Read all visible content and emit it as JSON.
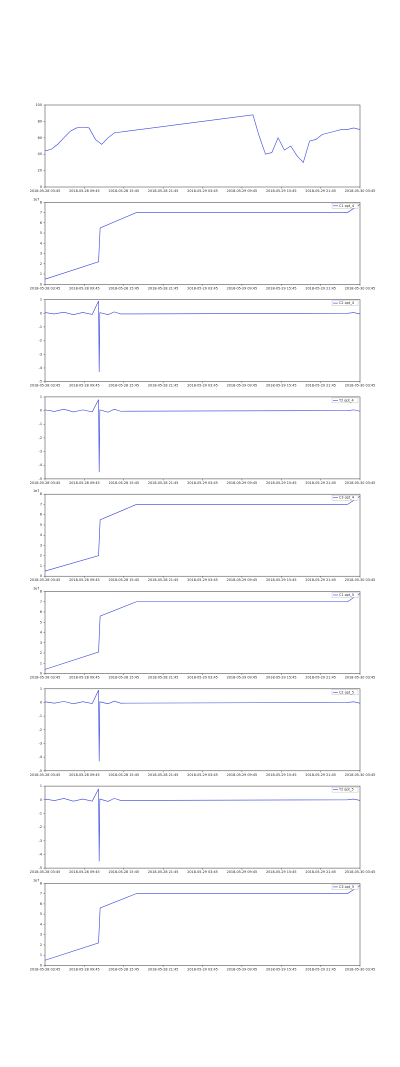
{
  "chart_data": [
    {
      "type": "line",
      "color": "#3344dd",
      "x": [
        0,
        2,
        4,
        6,
        8,
        10,
        12,
        14,
        16,
        18,
        20,
        22,
        66,
        68,
        70,
        72,
        74,
        76,
        78,
        80,
        82,
        84,
        86,
        88,
        90,
        92,
        94,
        96,
        98,
        100
      ],
      "values": [
        44,
        46,
        52,
        60,
        68,
        72,
        73,
        72,
        58,
        52,
        60,
        66,
        88,
        62,
        40,
        42,
        60,
        45,
        50,
        38,
        30,
        56,
        58,
        64,
        66,
        68,
        70,
        70,
        72,
        70
      ],
      "xlim": [
        0,
        100
      ],
      "ylim": [
        0,
        100
      ],
      "yticks": [
        0,
        20,
        40,
        60,
        80,
        100
      ],
      "xticks": [
        {
          "value": 0,
          "label": "2018-05-28 03:45"
        },
        {
          "value": 12.5,
          "label": "2018-05-28 09:45"
        },
        {
          "value": 25,
          "label": "2018-05-28 15:45"
        },
        {
          "value": 37.5,
          "label": "2018-05-28 21:45"
        },
        {
          "value": 50,
          "label": "2018-05-29 03:45"
        },
        {
          "value": 62.5,
          "label": "2018-05-29 09:45"
        },
        {
          "value": 75,
          "label": "2018-05-29 15:45"
        },
        {
          "value": 87.5,
          "label": "2018-05-29 21:45"
        },
        {
          "value": 100,
          "label": "2018-05-30 03:45"
        }
      ]
    },
    {
      "type": "line",
      "offset_text": "1e7",
      "series": [
        {
          "name": "C1 opt_4",
          "color": "#3344dd",
          "x": [
            0,
            17,
            17.5,
            29,
            96,
            100
          ],
          "values": [
            0.5,
            2.2,
            5.5,
            7,
            7,
            7.8
          ]
        }
      ],
      "xlim": [
        0,
        100
      ],
      "ylim": [
        0,
        8
      ],
      "yticks": [
        0,
        1,
        2,
        3,
        4,
        5,
        6,
        7,
        8
      ],
      "xticks": [
        {
          "value": 0,
          "label": "2018-05-28 03:45"
        },
        {
          "value": 12.5,
          "label": "2018-05-28 09:45"
        },
        {
          "value": 25,
          "label": "2018-05-28 15:45"
        },
        {
          "value": 37.5,
          "label": "2018-05-28 21:45"
        },
        {
          "value": 50,
          "label": "2018-05-29 03:45"
        },
        {
          "value": 62.5,
          "label": "2018-05-29 09:45"
        },
        {
          "value": 75,
          "label": "2018-05-29 15:45"
        },
        {
          "value": 87.5,
          "label": "2018-05-29 21:45"
        },
        {
          "value": 100,
          "label": "2018-05-30 03:45"
        }
      ]
    },
    {
      "type": "line",
      "series": [
        {
          "name": "C2 opt_4",
          "color": "#3344dd",
          "x": [
            0,
            3,
            6,
            9,
            12,
            15,
            17,
            17.2,
            17.4,
            20,
            22,
            24,
            96,
            98,
            100
          ],
          "values": [
            0.05,
            -0.05,
            0.08,
            -0.1,
            0.06,
            -0.08,
            0.9,
            -4.3,
            0.05,
            -0.1,
            0.1,
            -0.05,
            0,
            0.05,
            -0.05
          ]
        }
      ],
      "xlim": [
        0,
        100
      ],
      "ylim": [
        -5,
        1
      ],
      "yticks": [
        -5,
        -4,
        -3,
        -2,
        -1,
        0,
        1
      ],
      "xticks": [
        {
          "value": 0,
          "label": "2018-05-28 03:45"
        },
        {
          "value": 12.5,
          "label": "2018-05-28 09:45"
        },
        {
          "value": 25,
          "label": "2018-05-28 15:45"
        },
        {
          "value": 37.5,
          "label": "2018-05-28 21:45"
        },
        {
          "value": 50,
          "label": "2018-05-29 03:45"
        },
        {
          "value": 62.5,
          "label": "2018-05-29 09:45"
        },
        {
          "value": 75,
          "label": "2018-05-29 15:45"
        },
        {
          "value": 87.5,
          "label": "2018-05-29 21:45"
        },
        {
          "value": 100,
          "label": "2018-05-30 03:45"
        }
      ]
    },
    {
      "type": "line",
      "series": [
        {
          "name": "T2 opt_4",
          "color": "#3344dd",
          "x": [
            0,
            3,
            6,
            9,
            12,
            15,
            17,
            17.2,
            17.4,
            20,
            22,
            24,
            96,
            98,
            100
          ],
          "values": [
            0.05,
            -0.06,
            0.1,
            -0.1,
            0.05,
            -0.1,
            0.8,
            -4.5,
            0.05,
            -0.12,
            0.1,
            -0.05,
            0,
            0.05,
            -0.05
          ]
        }
      ],
      "xlim": [
        0,
        100
      ],
      "ylim": [
        -5,
        1
      ],
      "yticks": [
        -5,
        -4,
        -3,
        -2,
        -1,
        0,
        1
      ],
      "xticks": [
        {
          "value": 0,
          "label": "2018-05-28 03:45"
        },
        {
          "value": 12.5,
          "label": "2018-05-28 09:45"
        },
        {
          "value": 25,
          "label": "2018-05-28 15:45"
        },
        {
          "value": 37.5,
          "label": "2018-05-28 21:45"
        },
        {
          "value": 50,
          "label": "2018-05-29 03:45"
        },
        {
          "value": 62.5,
          "label": "2018-05-29 09:45"
        },
        {
          "value": 75,
          "label": "2018-05-29 15:45"
        },
        {
          "value": 87.5,
          "label": "2018-05-29 21:45"
        },
        {
          "value": 100,
          "label": "2018-05-30 03:45"
        }
      ]
    },
    {
      "type": "line",
      "offset_text": "1e7",
      "series": [
        {
          "name": "C3 opt_4",
          "color": "#3344dd",
          "x": [
            0,
            17,
            17.5,
            29,
            96,
            100
          ],
          "values": [
            0.5,
            2,
            5.5,
            7,
            7,
            7.8
          ]
        }
      ],
      "xlim": [
        0,
        100
      ],
      "ylim": [
        0,
        8
      ],
      "yticks": [
        0,
        1,
        2,
        3,
        4,
        5,
        6,
        7,
        8
      ],
      "xticks": [
        {
          "value": 0,
          "label": "2018-05-28 03:45"
        },
        {
          "value": 12.5,
          "label": "2018-05-28 09:45"
        },
        {
          "value": 25,
          "label": "2018-05-28 15:45"
        },
        {
          "value": 37.5,
          "label": "2018-05-28 21:45"
        },
        {
          "value": 50,
          "label": "2018-05-29 03:45"
        },
        {
          "value": 62.5,
          "label": "2018-05-29 09:45"
        },
        {
          "value": 75,
          "label": "2018-05-29 15:45"
        },
        {
          "value": 87.5,
          "label": "2018-05-29 21:45"
        },
        {
          "value": 100,
          "label": "2018-05-30 03:45"
        }
      ]
    },
    {
      "type": "line",
      "offset_text": "1e7",
      "series": [
        {
          "name": "C1 opt_5",
          "color": "#3344dd",
          "x": [
            0,
            17,
            17.5,
            29,
            96,
            100
          ],
          "values": [
            0.4,
            2.1,
            5.6,
            7,
            7,
            7.8
          ]
        }
      ],
      "xlim": [
        0,
        100
      ],
      "ylim": [
        0,
        8
      ],
      "yticks": [
        0,
        1,
        2,
        3,
        4,
        5,
        6,
        7,
        8
      ],
      "xticks": [
        {
          "value": 0,
          "label": "2018-05-28 03:45"
        },
        {
          "value": 12.5,
          "label": "2018-05-28 09:45"
        },
        {
          "value": 25,
          "label": "2018-05-28 15:45"
        },
        {
          "value": 37.5,
          "label": "2018-05-28 21:45"
        },
        {
          "value": 50,
          "label": "2018-05-29 03:45"
        },
        {
          "value": 62.5,
          "label": "2018-05-29 09:45"
        },
        {
          "value": 75,
          "label": "2018-05-29 15:45"
        },
        {
          "value": 87.5,
          "label": "2018-05-29 21:45"
        },
        {
          "value": 100,
          "label": "2018-05-30 03:45"
        }
      ]
    },
    {
      "type": "line",
      "series": [
        {
          "name": "C2 opt_5",
          "color": "#3344dd",
          "x": [
            0,
            3,
            6,
            9,
            12,
            15,
            17,
            17.2,
            17.4,
            20,
            22,
            24,
            96,
            98,
            100
          ],
          "values": [
            0.05,
            -0.05,
            0.08,
            -0.1,
            0.06,
            -0.08,
            0.9,
            -4.3,
            0.05,
            -0.1,
            0.1,
            -0.05,
            0,
            0.05,
            -0.05
          ]
        }
      ],
      "xlim": [
        0,
        100
      ],
      "ylim": [
        -5,
        1
      ],
      "yticks": [
        -5,
        -4,
        -3,
        -2,
        -1,
        0,
        1
      ],
      "xticks": [
        {
          "value": 0,
          "label": "2018-05-28 03:45"
        },
        {
          "value": 12.5,
          "label": "2018-05-28 09:45"
        },
        {
          "value": 25,
          "label": "2018-05-28 15:45"
        },
        {
          "value": 37.5,
          "label": "2018-05-28 21:45"
        },
        {
          "value": 50,
          "label": "2018-05-29 03:45"
        },
        {
          "value": 62.5,
          "label": "2018-05-29 09:45"
        },
        {
          "value": 75,
          "label": "2018-05-29 15:45"
        },
        {
          "value": 87.5,
          "label": "2018-05-29 21:45"
        },
        {
          "value": 100,
          "label": "2018-05-30 03:45"
        }
      ]
    },
    {
      "type": "line",
      "series": [
        {
          "name": "T2 opt_5",
          "color": "#3344dd",
          "x": [
            0,
            3,
            6,
            9,
            12,
            15,
            17,
            17.2,
            17.4,
            20,
            22,
            24,
            96,
            98,
            100
          ],
          "values": [
            0.05,
            -0.06,
            0.1,
            -0.1,
            0.05,
            -0.1,
            0.8,
            -4.5,
            0.05,
            -0.12,
            0.1,
            -0.05,
            0,
            0.05,
            -0.05
          ]
        }
      ],
      "xlim": [
        0,
        100
      ],
      "ylim": [
        -5,
        1
      ],
      "yticks": [
        -5,
        -4,
        -3,
        -2,
        -1,
        0,
        1
      ],
      "xticks": [
        {
          "value": 0,
          "label": "2018-05-28 03:45"
        },
        {
          "value": 12.5,
          "label": "2018-05-28 09:45"
        },
        {
          "value": 25,
          "label": "2018-05-28 15:45"
        },
        {
          "value": 37.5,
          "label": "2018-05-28 21:45"
        },
        {
          "value": 50,
          "label": "2018-05-29 03:45"
        },
        {
          "value": 62.5,
          "label": "2018-05-29 09:45"
        },
        {
          "value": 75,
          "label": "2018-05-29 15:45"
        },
        {
          "value": 87.5,
          "label": "2018-05-29 21:45"
        },
        {
          "value": 100,
          "label": "2018-05-30 03:45"
        }
      ]
    },
    {
      "type": "line",
      "offset_text": "1e7",
      "series": [
        {
          "name": "C3 opt_5",
          "color": "#3344dd",
          "x": [
            0,
            17,
            17.5,
            29,
            96,
            100
          ],
          "values": [
            0.5,
            2.2,
            5.6,
            7,
            7,
            7.8
          ]
        }
      ],
      "xlim": [
        0,
        100
      ],
      "ylim": [
        0,
        8
      ],
      "yticks": [
        0,
        1,
        2,
        3,
        4,
        5,
        6,
        7,
        8
      ],
      "xticks": [
        {
          "value": 0,
          "label": "2018-05-28 03:45"
        },
        {
          "value": 12.5,
          "label": "2018-05-28 09:45"
        },
        {
          "value": 25,
          "label": "2018-05-28 15:45"
        },
        {
          "value": 37.5,
          "label": "2018-05-28 21:45"
        },
        {
          "value": 50,
          "label": "2018-05-29 03:45"
        },
        {
          "value": 62.5,
          "label": "2018-05-29 09:45"
        },
        {
          "value": 75,
          "label": "2018-05-29 15:45"
        },
        {
          "value": 87.5,
          "label": "2018-05-29 21:45"
        },
        {
          "value": 100,
          "label": "2018-05-30 03:45"
        }
      ]
    }
  ]
}
